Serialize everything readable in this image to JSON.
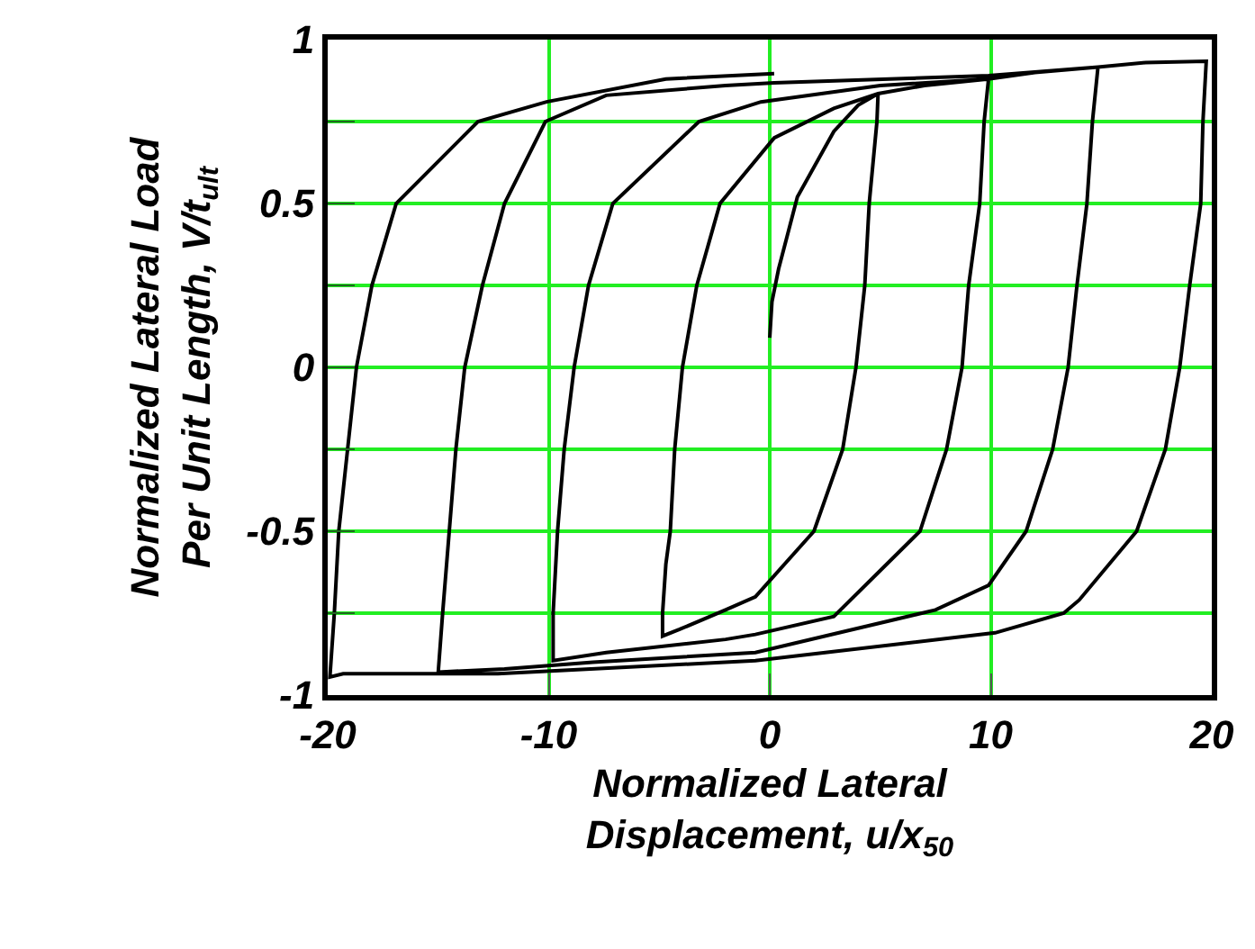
{
  "chart_data": {
    "type": "line",
    "xlabel": "Normalized Lateral\nDisplacement, u/x$_{50}$",
    "ylabel": "Normalized Lateral Load\nPer Unit Length, V/t$_{ult}$",
    "series": [
      {
        "color": "#000000",
        "x": [
          0,
          0.1,
          0.4,
          1.25,
          2.9,
          4.0,
          4.9,
          4.85,
          4.5,
          4.3,
          3.9,
          3.3,
          2.0,
          -0.65,
          -2.0,
          -4.1,
          -4.85,
          -4.85,
          -4.7,
          -4.5,
          -4.3,
          -3.95,
          -3.3,
          -2.25,
          0.2,
          2.9,
          4.9,
          7.0,
          9.9,
          9.7,
          9.5,
          9.0,
          8.7,
          8.0,
          6.8,
          2.9,
          -0.65,
          -2.0,
          -7.4,
          -9.8,
          -9.8,
          -9.6,
          -9.3,
          -8.85,
          -8.2,
          -7.1,
          -3.2,
          -0.4,
          5.0,
          9.9,
          12.0,
          14.85,
          14.6,
          14.35,
          13.9,
          13.5,
          12.8,
          11.6,
          9.9,
          7.5,
          -0.65,
          -8.0,
          -12.0,
          -15.0,
          -14.8,
          -14.5,
          -14.2,
          -13.8,
          -13.0,
          -12.0,
          -10.15,
          -7.4,
          -2.0,
          0.2,
          9.9,
          14.85,
          17.0,
          19.75,
          19.6,
          19.5,
          19.0,
          18.55,
          17.9,
          16.6,
          14.0,
          13.3,
          10.2,
          -0.65,
          -12.3,
          -19.3,
          -19.9,
          -19.7,
          -19.5,
          -19.1,
          -18.7,
          -18.0,
          -16.9,
          -13.2,
          -10.1,
          -4.7,
          0.2
        ],
        "values": [
          0.09,
          0.2,
          0.3,
          0.52,
          0.72,
          0.8,
          0.835,
          0.75,
          0.5,
          0.25,
          0,
          -0.25,
          -0.5,
          -0.7,
          -0.74,
          -0.8,
          -0.82,
          -0.75,
          -0.6,
          -0.5,
          -0.25,
          0,
          0.25,
          0.5,
          0.7,
          0.79,
          0.835,
          0.86,
          0.88,
          0.75,
          0.5,
          0.25,
          0,
          -0.25,
          -0.5,
          -0.76,
          -0.815,
          -0.83,
          -0.87,
          -0.895,
          -0.75,
          -0.5,
          -0.25,
          0,
          0.25,
          0.5,
          0.75,
          0.81,
          0.86,
          0.88,
          0.9,
          0.916,
          0.75,
          0.5,
          0.25,
          0,
          -0.25,
          -0.5,
          -0.665,
          -0.74,
          -0.87,
          -0.9,
          -0.92,
          -0.93,
          -0.75,
          -0.5,
          -0.25,
          0,
          0.25,
          0.5,
          0.75,
          0.83,
          0.86,
          0.868,
          0.89,
          0.916,
          0.93,
          0.934,
          0.75,
          0.5,
          0.25,
          0,
          -0.25,
          -0.5,
          -0.71,
          -0.75,
          -0.81,
          -0.895,
          -0.935,
          -0.935,
          -0.945,
          -0.75,
          -0.5,
          -0.25,
          0,
          0.25,
          0.5,
          0.75,
          0.81,
          0.88,
          0.896
        ]
      }
    ],
    "xlim": [
      -20,
      20
    ],
    "xticks": [
      -20,
      -10,
      0,
      10,
      20
    ],
    "ylim": [
      -1,
      1
    ],
    "yticks": [
      -1,
      {
        "value": -0.75,
        "label": null
      },
      -0.5,
      {
        "value": -0.25,
        "label": null
      },
      0,
      {
        "value": 0.25,
        "label": null
      },
      0.5,
      {
        "value": 0.75,
        "label": null
      },
      1
    ],
    "grid": true,
    "marker": "none",
    "line_style": "solid"
  }
}
